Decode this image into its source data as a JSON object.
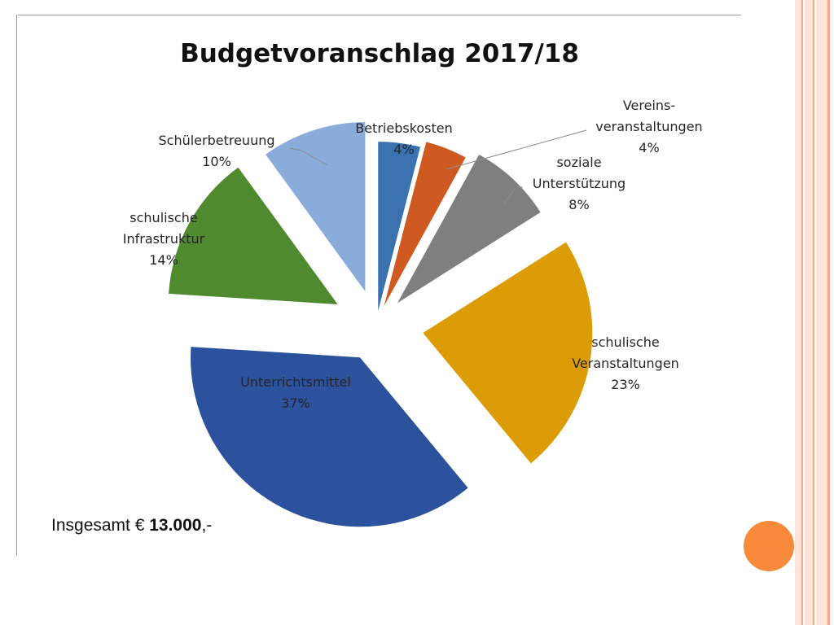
{
  "colors": {
    "stripe_light": "#fde3d8",
    "stripe_accent": "#f6a78a",
    "frame": "#9a9a9a",
    "accent_circle": "#f98a3c"
  },
  "footer": {
    "total_prefix": "Insgesamt € ",
    "total_amount": "13.000",
    "total_suffix": ",-"
  },
  "chart_data": {
    "type": "pie",
    "title": "Budgetvoranschlag 2017/18",
    "exploded": true,
    "slices": [
      {
        "label": [
          "Betriebskosten"
        ],
        "value": 4,
        "pct": "4%",
        "color": "#3a72b0"
      },
      {
        "label": [
          "Vereins-",
          "veranstaltungen"
        ],
        "value": 4,
        "pct": "4%",
        "color": "#cf5a21"
      },
      {
        "label": [
          "soziale",
          "Unterstützung"
        ],
        "value": 8,
        "pct": "8%",
        "color": "#7f7f7f"
      },
      {
        "label": [
          "schulische",
          "Veranstaltungen"
        ],
        "value": 23,
        "pct": "23%",
        "color": "#dc9c05"
      },
      {
        "label": [
          "Unterrichtsmittel"
        ],
        "value": 37,
        "pct": "37%",
        "color": "#2c529e"
      },
      {
        "label": [
          "schulische",
          "Infrastruktur"
        ],
        "value": 14,
        "pct": "14%",
        "color": "#4f8a2f"
      },
      {
        "label": [
          "Schülerbetreuung"
        ],
        "value": 10,
        "pct": "10%",
        "color": "#89acdb"
      }
    ]
  }
}
